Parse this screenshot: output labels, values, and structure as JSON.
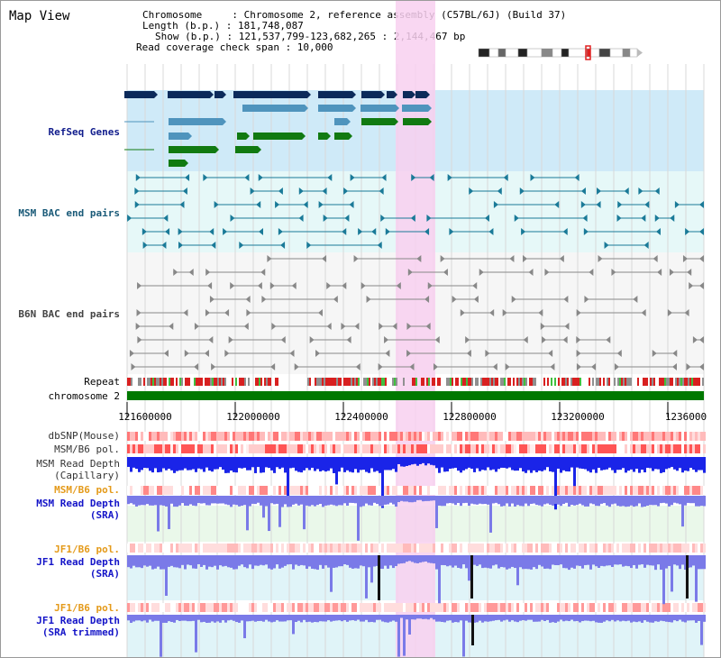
{
  "view_title": "Map View",
  "info": {
    "chromosome_line": "Chromosome     : Chromosome 2, reference assembly (C57BL/6J) (Build 37)",
    "length_line": "Length (b.p.) : 181,748,087",
    "show_line": "Show (b.p.) : 121,537,799-123,682,265 : 2,144,467 bp",
    "span_line": "Read coverage check span : 10,000"
  },
  "track_labels": {
    "refseq": "RefSeq Genes",
    "msm_bac": "MSM BAC end pairs",
    "b6n_bac": "B6N BAC end pairs",
    "repeat": "Repeat",
    "chromosome": "chromosome 2",
    "dbsnp": "dbSNP(Mouse)",
    "msm_b6_pol_1": "MSM/B6 pol.",
    "msm_read_depth_cap": "MSM Read Depth\n(Capillary)",
    "msm_b6_pol_2": "MSM/B6 pol.",
    "msm_read_depth_sra": "MSM Read Depth\n(SRA)",
    "jf1_b6_pol_1": "JF1/B6 pol.",
    "jf1_read_depth_sra": "JF1 Read Depth\n(SRA)",
    "jf1_b6_pol_2": "JF1/B6 pol.",
    "jf1_read_depth_trim": "JF1 Read Depth\n(SRA trimmed)"
  },
  "axis_ticks": [
    "121600000",
    "122000000",
    "122400000",
    "122800000",
    "123200000",
    "1236000"
  ],
  "colors": {
    "highlight": "#f8d0f0",
    "refseq_bg": "#cfeaf8",
    "msm_bac_bg": "#e6f8f8",
    "chromosome_bar": "#007800",
    "dark_gene": "#0c2a5a",
    "mid_gene": "#4f94bd",
    "green_gene": "#117a11",
    "depth_blue": "#1a24e8",
    "depth_light": "#7a7ae8"
  }
}
